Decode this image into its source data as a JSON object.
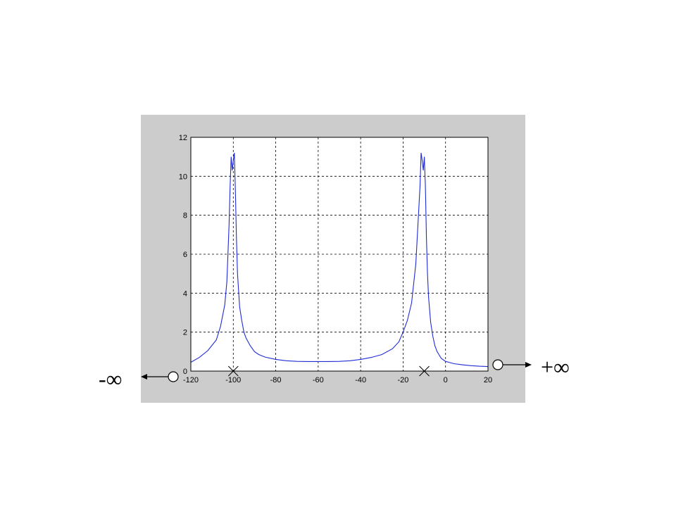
{
  "chart_data": {
    "type": "line",
    "title": "",
    "xlabel": "",
    "ylabel": "",
    "xlim": [
      -120,
      20
    ],
    "ylim": [
      0,
      12
    ],
    "xticks": [
      "-120",
      "-100",
      "-80",
      "-60",
      "-40",
      "-20",
      "0",
      "20"
    ],
    "yticks": [
      "0",
      "2",
      "4",
      "6",
      "8",
      "10",
      "12"
    ],
    "grid": true,
    "series": [
      {
        "color": "#1f2bd6",
        "x": [
          -120,
          -116,
          -112,
          -108,
          -106,
          -104,
          -103,
          -102,
          -101.5,
          -101,
          -100.5,
          -100,
          -99.5,
          -99,
          -98.5,
          -98,
          -97,
          -96,
          -95,
          -94,
          -92,
          -90,
          -88,
          -85,
          -80,
          -75,
          -70,
          -65,
          -60,
          -55,
          -50,
          -45,
          -40,
          -35,
          -30,
          -25,
          -22,
          -20,
          -18,
          -16,
          -15,
          -14,
          -13,
          -12,
          -11.5,
          -11,
          -10.5,
          -10,
          -9.5,
          -9,
          -8.5,
          -8,
          -7,
          -6,
          -5,
          -4,
          -2,
          0,
          4,
          8,
          12,
          16,
          20
        ],
        "values": [
          0.45,
          0.7,
          1.05,
          1.6,
          2.3,
          3.4,
          4.6,
          7.5,
          9.5,
          11.0,
          10.3,
          10.8,
          11.2,
          9.2,
          6.8,
          5.0,
          3.3,
          2.6,
          2.0,
          1.7,
          1.3,
          1.0,
          0.85,
          0.72,
          0.6,
          0.53,
          0.5,
          0.49,
          0.49,
          0.49,
          0.5,
          0.53,
          0.6,
          0.7,
          0.85,
          1.15,
          1.5,
          2.0,
          2.6,
          3.5,
          4.5,
          5.5,
          7.5,
          9.5,
          11.2,
          10.8,
          10.3,
          11.0,
          9.5,
          6.8,
          5.0,
          3.8,
          2.5,
          1.8,
          1.3,
          1.0,
          0.65,
          0.5,
          0.38,
          0.32,
          0.28,
          0.25,
          0.23
        ]
      }
    ],
    "markers": [
      {
        "symbol": "cross",
        "x": -100,
        "y": 0
      },
      {
        "symbol": "cross",
        "x": -10,
        "y": 0
      }
    ]
  },
  "annotations": {
    "left": "-∞",
    "right": "+∞"
  },
  "colors": {
    "figure_bg": "#cccccc",
    "plot_bg": "#ffffff",
    "line": "#1f2bd6",
    "grid": "#000000"
  }
}
